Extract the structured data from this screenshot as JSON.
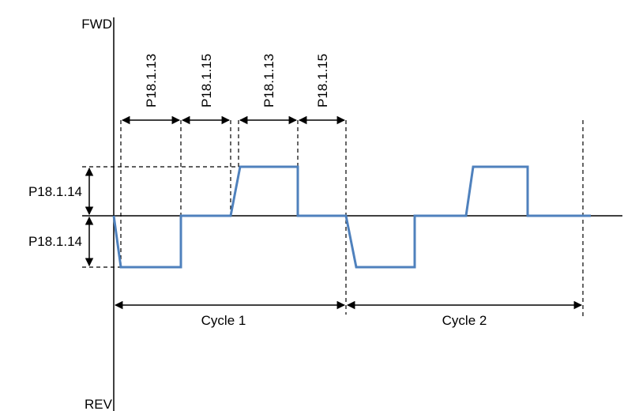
{
  "axis": {
    "top_label": "FWD",
    "bottom_label": "REV"
  },
  "time_labels": {
    "p13_first": "P18.1.13",
    "p15_first": "P18.1.15",
    "p13_second": "P18.1.13",
    "p15_second": "P18.1.15"
  },
  "amplitude_labels": {
    "upper": "P18.1.14",
    "lower": "P18.1.14"
  },
  "cycles": {
    "cycle1": "Cycle 1",
    "cycle2": "Cycle 2"
  },
  "colors": {
    "waveform": "#4f81bd",
    "axis": "#000000"
  }
}
